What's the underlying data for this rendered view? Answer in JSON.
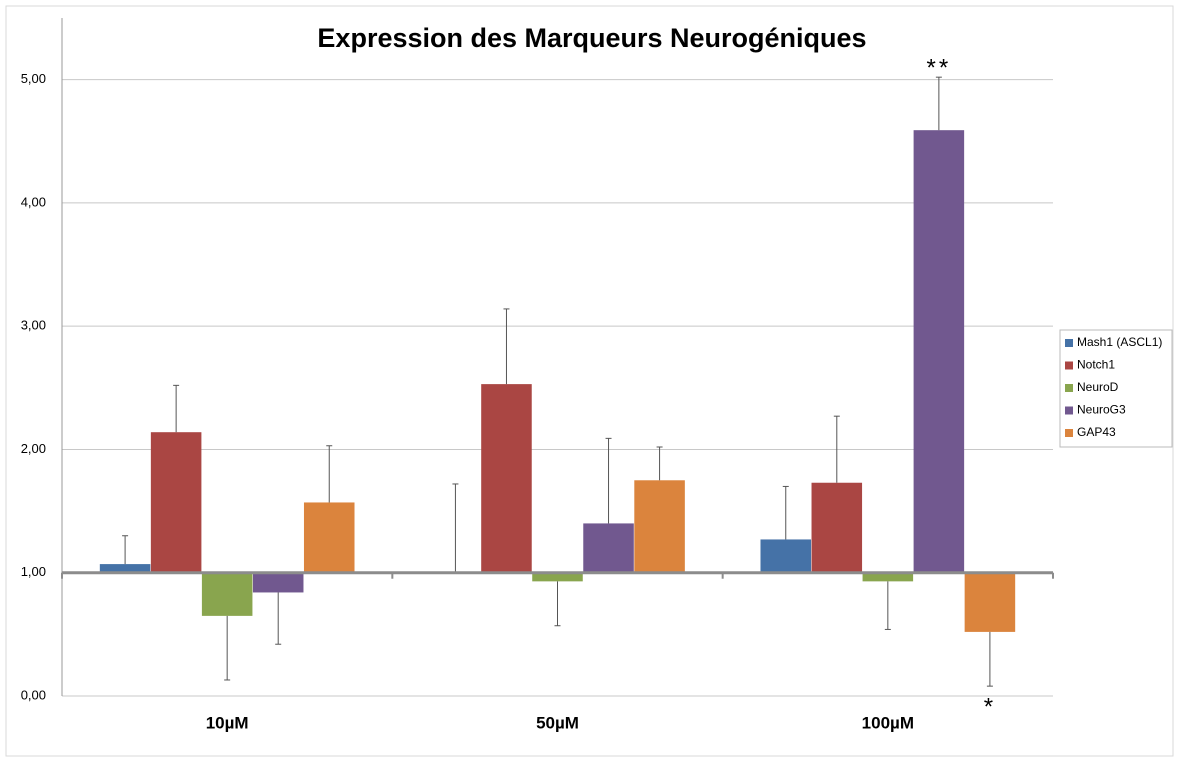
{
  "chart_data": {
    "type": "bar",
    "title": "Expression des Marqueurs Neurogéniques",
    "categories": [
      "10µM",
      "50µM",
      "100µM"
    ],
    "baseline": 1,
    "series": [
      {
        "name": "Mash1 (ASCL1)",
        "color": "#4572a7",
        "values": [
          1.07,
          1.0,
          1.27
        ],
        "errors": [
          0.23,
          0.72,
          0.43
        ]
      },
      {
        "name": "Notch1",
        "color": "#aa4643",
        "values": [
          2.14,
          2.53,
          1.73
        ],
        "errors": [
          0.38,
          0.61,
          0.54
        ]
      },
      {
        "name": "NeuroD",
        "color": "#89a54e",
        "values": [
          0.65,
          0.93,
          0.93
        ],
        "errors": [
          0.52,
          0.36,
          0.39
        ]
      },
      {
        "name": "NeuroG3",
        "color": "#71588f",
        "values": [
          0.84,
          1.4,
          4.59
        ],
        "errors": [
          0.42,
          0.69,
          0.43
        ]
      },
      {
        "name": "GAP43",
        "color": "#db843d",
        "values": [
          1.57,
          1.75,
          0.52
        ],
        "errors": [
          0.46,
          0.27,
          0.44
        ]
      }
    ],
    "annotations": [
      {
        "text": "**",
        "series": "NeuroG3",
        "category": "100µM"
      },
      {
        "text": "*",
        "series": "GAP43",
        "category": "100µM"
      }
    ],
    "ylim": [
      0,
      5.5
    ],
    "yticks": [
      {
        "value": 0,
        "label": "0,00"
      },
      {
        "value": 1,
        "label": "1,00"
      },
      {
        "value": 2,
        "label": "2,00"
      },
      {
        "value": 3,
        "label": "3,00"
      },
      {
        "value": 4,
        "label": "4,00"
      },
      {
        "value": 5,
        "label": "5,00"
      }
    ],
    "grid": true,
    "legend": "right"
  }
}
